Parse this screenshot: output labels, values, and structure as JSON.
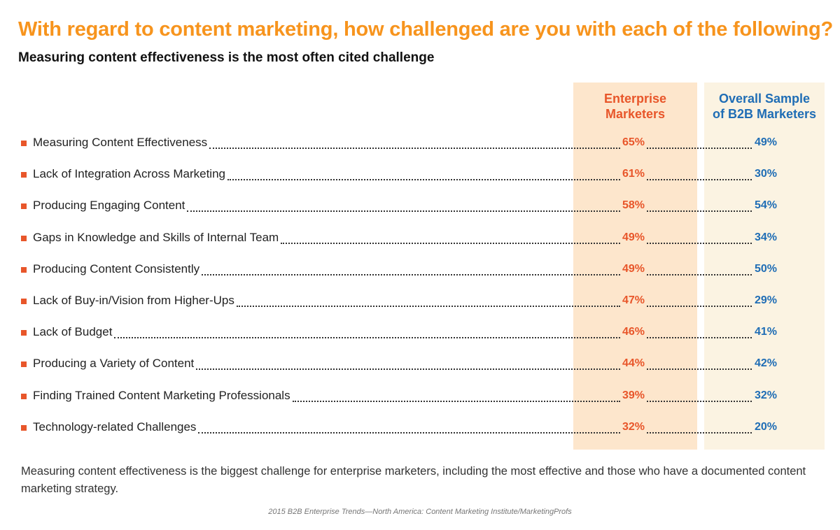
{
  "header": {
    "title": "With regard to content marketing, how challenged are you with each of the following?",
    "subtitle": "Measuring content effectiveness is the most often cited challenge"
  },
  "columns": {
    "enterprise": {
      "line1": "Enterprise",
      "line2": "Marketers"
    },
    "overall": {
      "line1": "Overall Sample",
      "line2": "of B2B Marketers"
    }
  },
  "colors": {
    "title": "#f7941d",
    "enterprise": "#e8562a",
    "overall": "#1f6db5",
    "enterprise_bg": "#fde6cc",
    "overall_bg": "#fbf3e2"
  },
  "chart_data": {
    "type": "table",
    "title": "With regard to content marketing, how challenged are you with each of the following?",
    "subtitle": "Measuring content effectiveness is the most often cited challenge",
    "categories": [
      "Measuring Content Effectiveness",
      "Lack of Integration Across Marketing",
      "Producing Engaging Content",
      "Gaps in Knowledge and Skills of Internal Team",
      "Producing Content Consistently",
      "Lack of Buy-in/Vision from Higher-Ups",
      "Lack of Budget",
      "Producing a Variety of Content",
      "Finding Trained Content Marketing Professionals",
      "Technology-related Challenges"
    ],
    "series": [
      {
        "name": "Enterprise Marketers",
        "values": [
          65,
          61,
          58,
          49,
          49,
          47,
          46,
          44,
          39,
          32
        ]
      },
      {
        "name": "Overall Sample of B2B Marketers",
        "values": [
          49,
          30,
          54,
          34,
          50,
          29,
          41,
          42,
          32,
          20
        ]
      }
    ],
    "unit": "%"
  },
  "footer": {
    "note": "Measuring content effectiveness is the biggest challenge for enterprise marketers, including the most effective and those who have a documented content marketing strategy.",
    "source": "2015 B2B Enterprise Trends—North America: Content Marketing Institute/MarketingProfs"
  }
}
